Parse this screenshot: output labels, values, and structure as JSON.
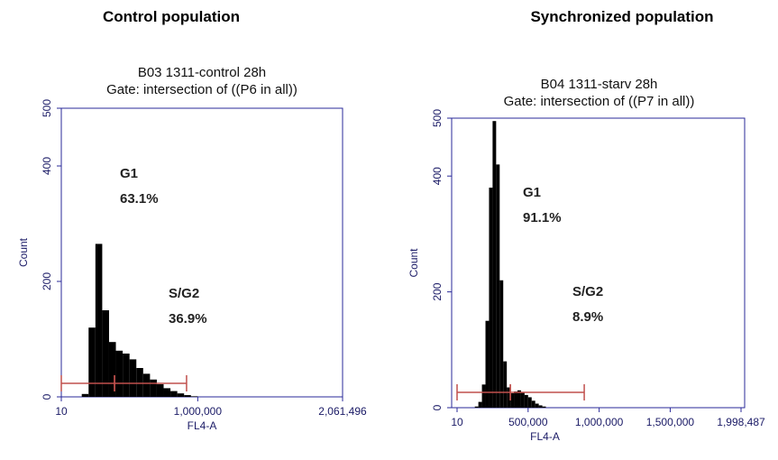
{
  "chart_data": [
    {
      "type": "histogram",
      "heading": "Control population",
      "title": "B03 1311-control 28h",
      "subtitle": "Gate: intersection of ((P6 in all))",
      "xlabel": "FL4-A",
      "ylabel": "Count",
      "color": "#000000",
      "gate_color": "#c0504d",
      "bins": [
        150000,
        200000,
        250000,
        300000,
        350000,
        400000,
        450000,
        500000,
        550000,
        600000,
        650000,
        700000,
        750000,
        800000,
        850000,
        900000,
        950000,
        1000000
      ],
      "counts": [
        5,
        120,
        265,
        150,
        95,
        80,
        75,
        65,
        50,
        40,
        30,
        22,
        15,
        10,
        6,
        3,
        1
      ],
      "xlim": [
        10,
        2061496
      ],
      "xticks": [
        10,
        {
          "value": 1000000,
          "label": "1,000,000"
        },
        {
          "value": 2061496,
          "label": "2,061,496"
        }
      ],
      "ylim": [
        0,
        500
      ],
      "yticks": [
        0,
        200,
        400,
        500
      ],
      "gates": [
        {
          "name": "G1",
          "share": "63.1%",
          "range": [
            10,
            390000
          ]
        },
        {
          "name": "S/G2",
          "share": "36.9%",
          "range": [
            390000,
            918000
          ]
        }
      ]
    },
    {
      "type": "histogram",
      "heading": "Synchronized population",
      "title": "B04 1311-starv 28h",
      "subtitle": "Gate: intersection of ((P7 in all))",
      "xlabel": "FL4-A",
      "ylabel": "Count",
      "color": "#000000",
      "gate_color": "#c0504d",
      "bins": [
        125000,
        150000,
        175000,
        200000,
        225000,
        250000,
        275000,
        300000,
        325000,
        350000,
        375000,
        400000,
        425000,
        450000,
        475000,
        500000,
        525000,
        550000,
        575000,
        600000,
        625000
      ],
      "counts": [
        2,
        10,
        40,
        150,
        380,
        495,
        420,
        220,
        80,
        35,
        25,
        28,
        30,
        27,
        22,
        18,
        12,
        7,
        4,
        2
      ],
      "xlim": [
        10,
        1998487
      ],
      "xticks": [
        10,
        {
          "value": 500000,
          "label": "500,000"
        },
        {
          "value": 1000000,
          "label": "1,000,000"
        },
        {
          "value": 1500000,
          "label": "1,500,000"
        },
        {
          "value": 1998487,
          "label": "1,998,487"
        }
      ],
      "ylim": [
        0,
        500
      ],
      "yticks": [
        0,
        200,
        400,
        500
      ],
      "gates": [
        {
          "name": "G1",
          "share": "91.1%",
          "range": [
            10,
            375000
          ]
        },
        {
          "name": "S/G2",
          "share": "8.9%",
          "range": [
            375000,
            895000
          ]
        }
      ]
    }
  ]
}
